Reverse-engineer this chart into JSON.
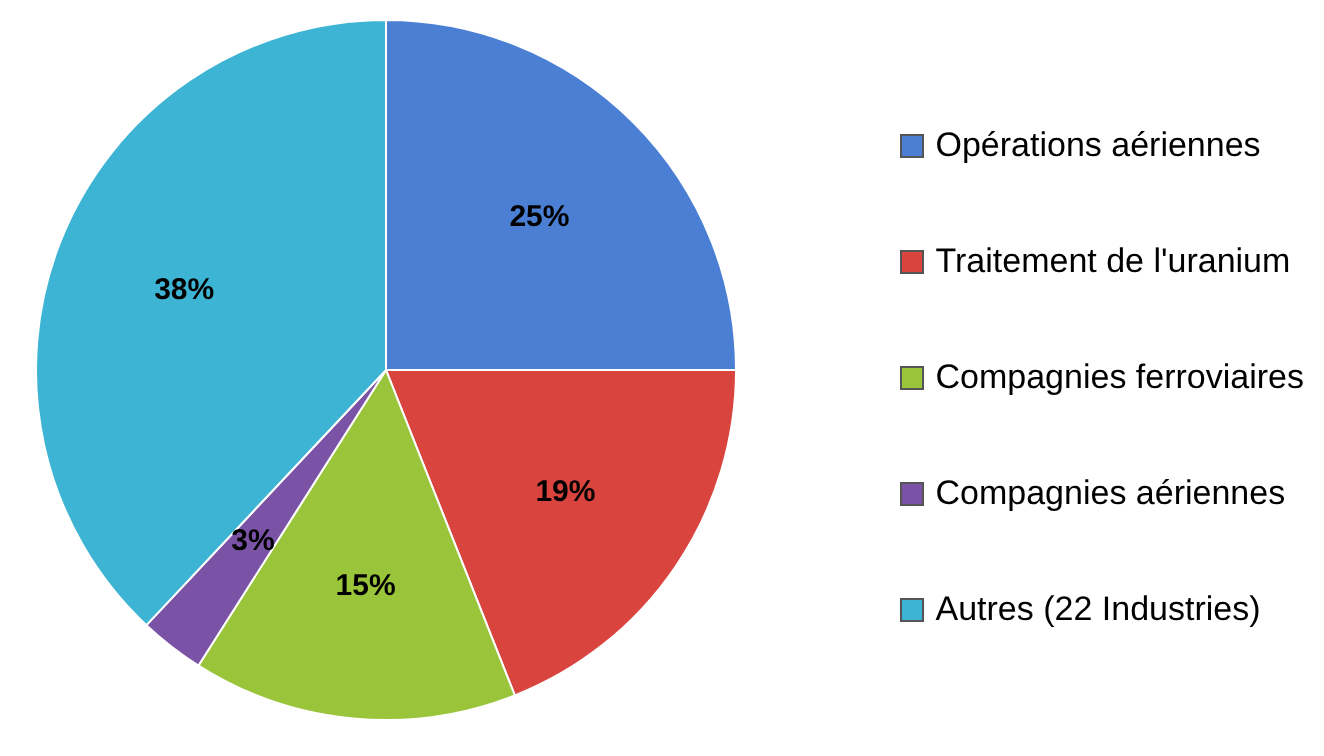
{
  "chart_data": {
    "type": "pie",
    "categories": [
      "Opérations aériennes",
      "Traitement de l'uranium",
      "Compagnies ferroviaires",
      "Compagnies aériennes",
      "Autres (22 Industries)"
    ],
    "values": [
      25,
      19,
      15,
      3,
      38
    ],
    "colors": [
      "#4a7fd4",
      "#d9443f",
      "#9ac43a",
      "#7a52a6",
      "#3db4d4"
    ],
    "value_labels": [
      "25%",
      "19%",
      "15%",
      "3%",
      "38%"
    ],
    "legend": "right"
  }
}
